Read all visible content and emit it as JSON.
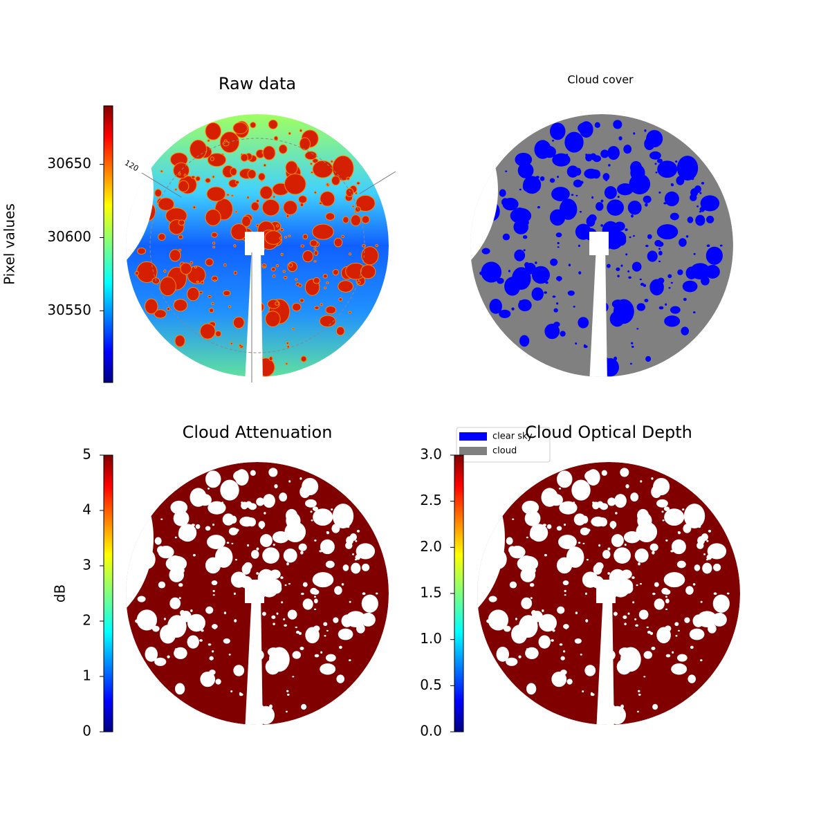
{
  "chart_data": [
    {
      "type": "image",
      "title": "Raw data",
      "colormap": "jet",
      "ylabel": "Pixel values",
      "ylim": [
        30501,
        30690
      ],
      "yticks": [
        30550,
        30600,
        30650
      ],
      "annotations": [
        "120"
      ]
    },
    {
      "type": "image",
      "title": "Cloud cover",
      "series": [
        {
          "name": "clear sky",
          "color": "#0000ff"
        },
        {
          "name": "cloud",
          "color": "#808080"
        }
      ]
    },
    {
      "type": "image",
      "title": "Cloud Attenuation",
      "colormap": "jet",
      "ylabel": "dB",
      "ylim": [
        0,
        5
      ],
      "yticks": [
        0,
        1,
        2,
        3,
        4,
        5
      ]
    },
    {
      "type": "image",
      "title": "Cloud Optical Depth",
      "colormap": "jet",
      "ylim": [
        0,
        3
      ],
      "yticks": [
        {
          "value": 0,
          "label": "0.0"
        },
        0.5,
        {
          "value": 1,
          "label": "1.0"
        },
        1.5,
        {
          "value": 2,
          "label": "2.0"
        },
        2.5,
        {
          "value": 3,
          "label": "3.0"
        }
      ]
    }
  ]
}
